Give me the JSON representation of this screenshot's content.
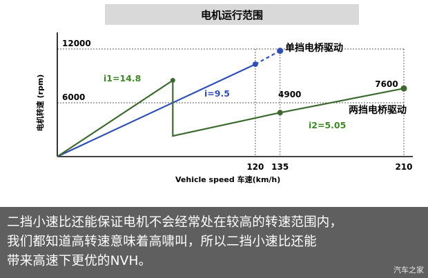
{
  "title": "电机运行范围",
  "caption": {
    "lines": [
      "二挡小速比还能保证电机不会经常处在较高的转速范围内，",
      "我们都知道高转速意味着高啸叫，所以二挡小速比还能",
      "带来高速下更优的NVH。"
    ]
  },
  "watermark": "汽车之家",
  "colors": {
    "single_gear": "#2e4fb8",
    "two_gear": "#3c6a2e",
    "ratio_label_green": "#3d8a26",
    "caption_bg": "#5f5f5f",
    "title_bg": "#d9d9d9"
  },
  "chart_data": {
    "type": "line",
    "xlabel": "Vehicle speed  车速(km/h)",
    "ylabel": "电机转速 (rpm)",
    "x_ticks": [
      "120",
      "135",
      "210"
    ],
    "y_ticks": [
      "6000",
      "12000"
    ],
    "xlim": [
      0,
      210
    ],
    "ylim": [
      0,
      12000
    ],
    "grid": "dotted reference lines at 6000, 12000 rpm and 120, 135, 210 km/h",
    "series": [
      {
        "name": "单挡电桥驱动",
        "ratio_label": "i=9.5",
        "color": "#2e4fb8",
        "solid": [
          [
            0,
            0
          ],
          [
            120,
            10300
          ]
        ],
        "dashed": [
          [
            120,
            10300
          ],
          [
            135,
            11800
          ]
        ]
      },
      {
        "ratio_label_first": "i1=14.8",
        "name": "两挡电桥驱动",
        "ratio_label": "i2=5.05",
        "color": "#3c6a2e",
        "points": [
          [
            0,
            0
          ],
          [
            70,
            8500
          ],
          [
            70,
            2300
          ],
          [
            135,
            4900
          ],
          [
            210,
            7600
          ]
        ]
      }
    ],
    "annotations": [
      "4900",
      "7600",
      "单挡电桥驱动",
      "两挡电桥驱动",
      "i1=14.8",
      "i=9.5",
      "i2=5.05"
    ]
  }
}
